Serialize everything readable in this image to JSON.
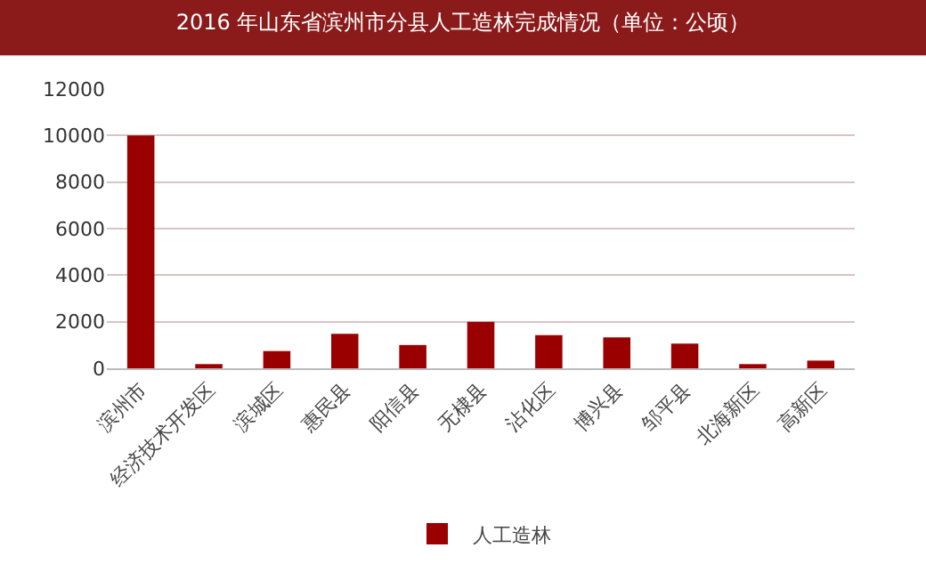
{
  "chart_data": {
    "type": "bar",
    "title": "2016 年山东省滨州市分县人工造林完成情况（单位：公顷）",
    "categories": [
      "滨州市",
      "经济技术开发区",
      "滨城区",
      "惠民县",
      "阳信县",
      "无棣县",
      "沾化区",
      "博兴县",
      "邹平县",
      "北海新区",
      "高新区"
    ],
    "series": [
      {
        "name": "人工造林",
        "color": "#9b0000",
        "values": [
          10000,
          180,
          740,
          1480,
          1000,
          2000,
          1420,
          1330,
          1060,
          180,
          330
        ]
      }
    ],
    "ylim": [
      0,
      12000
    ],
    "yticks": [
      0,
      2000,
      4000,
      6000,
      8000,
      10000,
      12000
    ],
    "grid": "y",
    "legend": "bottom"
  }
}
